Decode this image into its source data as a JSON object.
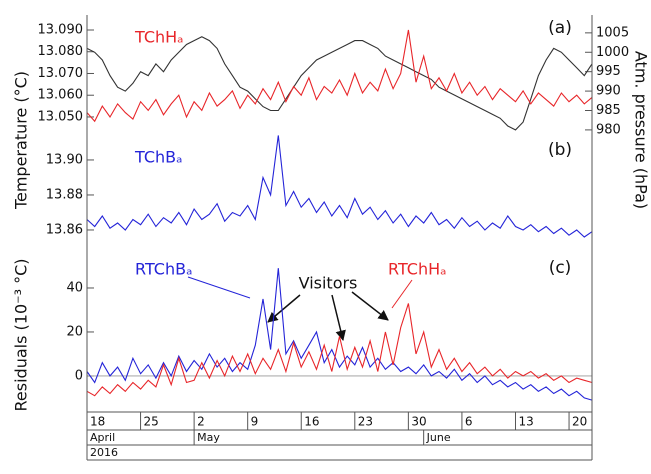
{
  "chart_data": {
    "type": "line",
    "y_label_top": "Temperature (°C)",
    "y_label_bottom": "Residuals (10⁻³ °C)",
    "x": [
      0,
      1,
      2,
      3,
      4,
      5,
      6,
      7,
      8,
      9,
      10,
      11,
      12,
      13,
      14,
      15,
      16,
      17,
      18,
      19,
      20,
      21,
      22,
      23,
      24,
      25,
      26,
      27,
      28,
      29,
      30,
      31,
      32,
      33,
      34,
      35,
      36,
      37,
      38,
      39,
      40,
      41,
      42,
      43,
      44,
      45,
      46,
      47,
      48,
      49,
      50,
      51,
      52,
      53,
      54,
      55,
      56,
      57,
      58,
      59,
      60,
      61,
      62,
      63,
      64,
      65,
      66
    ],
    "xlim": [
      0,
      66
    ],
    "xticks": [
      {
        "value": 0,
        "label": "18"
      },
      {
        "value": 7,
        "label": "25"
      },
      {
        "value": 14,
        "label": "2"
      },
      {
        "value": 21,
        "label": "9"
      },
      {
        "value": 28,
        "label": "16"
      },
      {
        "value": 35,
        "label": "23"
      },
      {
        "value": 42,
        "label": "30"
      },
      {
        "value": 49,
        "label": "6"
      },
      {
        "value": 56,
        "label": "13"
      },
      {
        "value": 63,
        "label": "20"
      }
    ],
    "month_ticks": [
      {
        "value": 0,
        "label": "April"
      },
      {
        "value": 14,
        "label": "May"
      },
      {
        "value": 44,
        "label": "June"
      }
    ],
    "year": "2016",
    "panels": [
      {
        "label": "(a)",
        "ylim": [
          13.0394,
          13.0969
        ],
        "yticks": [
          {
            "value": 13.05,
            "label": "13.050"
          },
          {
            "value": 13.06,
            "label": "13.060"
          },
          {
            "value": 13.07,
            "label": "13.070"
          },
          {
            "value": 13.08,
            "label": "13.080"
          },
          {
            "value": 13.09,
            "label": "13.090"
          }
        ],
        "y2label": "Atm. pressure (hPa)",
        "y2lim": [
          977.4,
          1009.6
        ],
        "y2ticks": [
          980,
          985,
          990,
          995,
          1000,
          1005
        ],
        "series": [
          {
            "name": "TChHₐ",
            "color": "#e8262a",
            "values": [
              13.052,
              13.048,
              13.055,
              13.05,
              13.056,
              13.052,
              13.049,
              13.057,
              13.053,
              13.058,
              13.051,
              13.056,
              13.06,
              13.05,
              13.057,
              13.053,
              13.061,
              13.055,
              13.058,
              13.062,
              13.054,
              13.06,
              13.056,
              13.063,
              13.058,
              13.066,
              13.057,
              13.064,
              13.06,
              13.068,
              13.058,
              13.064,
              13.061,
              13.067,
              13.06,
              13.07,
              13.061,
              13.066,
              13.062,
              13.072,
              13.063,
              13.07,
              13.09,
              13.066,
              13.078,
              13.063,
              13.068,
              13.062,
              13.07,
              13.061,
              13.066,
              13.06,
              13.064,
              13.058,
              13.063,
              13.06,
              13.057,
              13.062,
              13.056,
              13.061,
              13.058,
              13.055,
              13.061,
              13.057,
              13.06,
              13.056,
              13.059
            ]
          },
          {
            "color": "#333333",
            "axis": "y2",
            "values": [
              1001,
              1000,
              998,
              994,
              991,
              990,
              992,
              995,
              994,
              997,
              995,
              998,
              1000,
              1002,
              1003,
              1004,
              1003,
              1001,
              997,
              994,
              991,
              990,
              988,
              986,
              985,
              985,
              988,
              991,
              994,
              996,
              998,
              999,
              1000,
              1001,
              1002,
              1003,
              1003,
              1002,
              1001,
              999,
              998,
              997,
              996,
              995,
              994,
              993,
              991,
              990,
              989,
              988,
              987,
              986,
              985,
              984,
              983,
              981,
              980,
              982,
              988,
              994,
              998,
              1001,
              1000,
              998,
              996,
              994,
              997
            ]
          }
        ]
      },
      {
        "label": "(b)",
        "ylim": [
          13.8457,
          13.9114
        ],
        "yticks": [
          {
            "value": 13.86,
            "label": "13.86"
          },
          {
            "value": 13.88,
            "label": "13.88"
          },
          {
            "value": 13.9,
            "label": "13.90"
          }
        ],
        "series": [
          {
            "name": "TChBₐ",
            "color": "#2424d8",
            "values": [
              13.866,
              13.862,
              13.868,
              13.861,
              13.864,
              13.86,
              13.866,
              13.863,
              13.869,
              13.862,
              13.867,
              13.864,
              13.87,
              13.863,
              13.872,
              13.866,
              13.869,
              13.875,
              13.865,
              13.87,
              13.868,
              13.874,
              13.866,
              13.89,
              13.88,
              13.914,
              13.874,
              13.882,
              13.873,
              13.878,
              13.87,
              13.876,
              13.868,
              13.874,
              13.867,
              13.878,
              13.869,
              13.873,
              13.866,
              13.871,
              13.864,
              13.869,
              13.862,
              13.868,
              13.864,
              13.87,
              13.863,
              13.866,
              13.861,
              13.867,
              13.862,
              13.865,
              13.86,
              13.864,
              13.861,
              13.868,
              13.862,
              13.86,
              13.863,
              13.859,
              13.862,
              13.858,
              13.861,
              13.857,
              13.86,
              13.856,
              13.859
            ]
          }
        ]
      },
      {
        "label": "(c)",
        "ylim": [
          -16.4,
          55
        ],
        "yticks": [
          0,
          20,
          40
        ],
        "annotation": "Visitors",
        "series": [
          {
            "name": "RTChBₐ",
            "color": "#2424d8",
            "values": [
              2,
              -3,
              6,
              0,
              4,
              -2,
              8,
              1,
              5,
              -1,
              6,
              0,
              9,
              2,
              7,
              3,
              10,
              4,
              8,
              2,
              6,
              3,
              14,
              35,
              12,
              49,
              10,
              16,
              8,
              14,
              20,
              6,
              12,
              4,
              9,
              5,
              13,
              4,
              8,
              3,
              6,
              2,
              4,
              1,
              5,
              0,
              2,
              -1,
              3,
              -2,
              1,
              -3,
              0,
              -4,
              -2,
              -5,
              -3,
              -6,
              -4,
              -7,
              -5,
              -8,
              -6,
              -9,
              -7,
              -10,
              -11
            ]
          },
          {
            "name": "RTChHₐ",
            "color": "#e8262a",
            "values": [
              -7,
              -9,
              -5,
              -8,
              -4,
              -7,
              -3,
              -6,
              -2,
              -5,
              5,
              -4,
              8,
              -3,
              -2,
              6,
              -1,
              7,
              0,
              9,
              2,
              10,
              1,
              8,
              3,
              12,
              2,
              15,
              4,
              11,
              3,
              14,
              2,
              18,
              3,
              13,
              4,
              16,
              2,
              20,
              5,
              22,
              33,
              10,
              20,
              4,
              12,
              3,
              8,
              2,
              6,
              1,
              4,
              0,
              3,
              -1,
              2,
              0,
              2,
              -1,
              1,
              -2,
              0,
              -3,
              -1,
              -2,
              -3
            ]
          }
        ]
      }
    ]
  }
}
